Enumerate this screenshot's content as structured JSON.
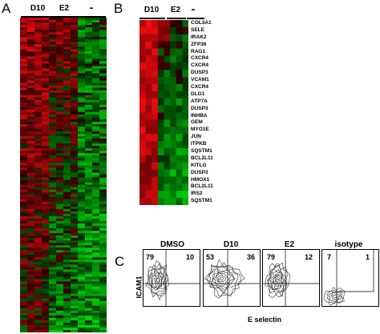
{
  "panel_a": {
    "letter": "A",
    "groups": [
      "D10",
      "E2",
      "-"
    ]
  },
  "panel_b": {
    "letter": "B",
    "groups": [
      "D10",
      "E2",
      "-"
    ],
    "genes": [
      "COL3A1",
      "SELE",
      "IRAK2",
      "ZFP36",
      "RAG1",
      "CXCR4",
      "CXCR4",
      "DUSP3",
      "VCAM1",
      "CXCR4",
      "DLG1",
      "ATP7A",
      "DUSP3",
      "INHBA",
      "GEM",
      "MYO1E",
      "JUN",
      "ITPKB",
      "SQSTM1",
      "BCL2L11",
      "KITLG",
      "DUSP3",
      "HMOX1",
      "BCL2L11",
      "IRS2",
      "SQSTM1"
    ]
  },
  "panel_c": {
    "letter": "C",
    "y_axis_label": "ICAM1",
    "x_axis_label": "E selectin",
    "plots": [
      {
        "label": "DMSO",
        "left_pct": "79",
        "right_pct": "10"
      },
      {
        "label": "D10",
        "left_pct": "53",
        "right_pct": "36"
      },
      {
        "label": "E2",
        "left_pct": "79",
        "right_pct": "12"
      },
      {
        "label": "isotype",
        "left_pct": "7",
        "right_pct": "1"
      }
    ]
  },
  "colors": {
    "up": "#d0121b",
    "down": "#16c21a",
    "neutral": "#000000"
  }
}
